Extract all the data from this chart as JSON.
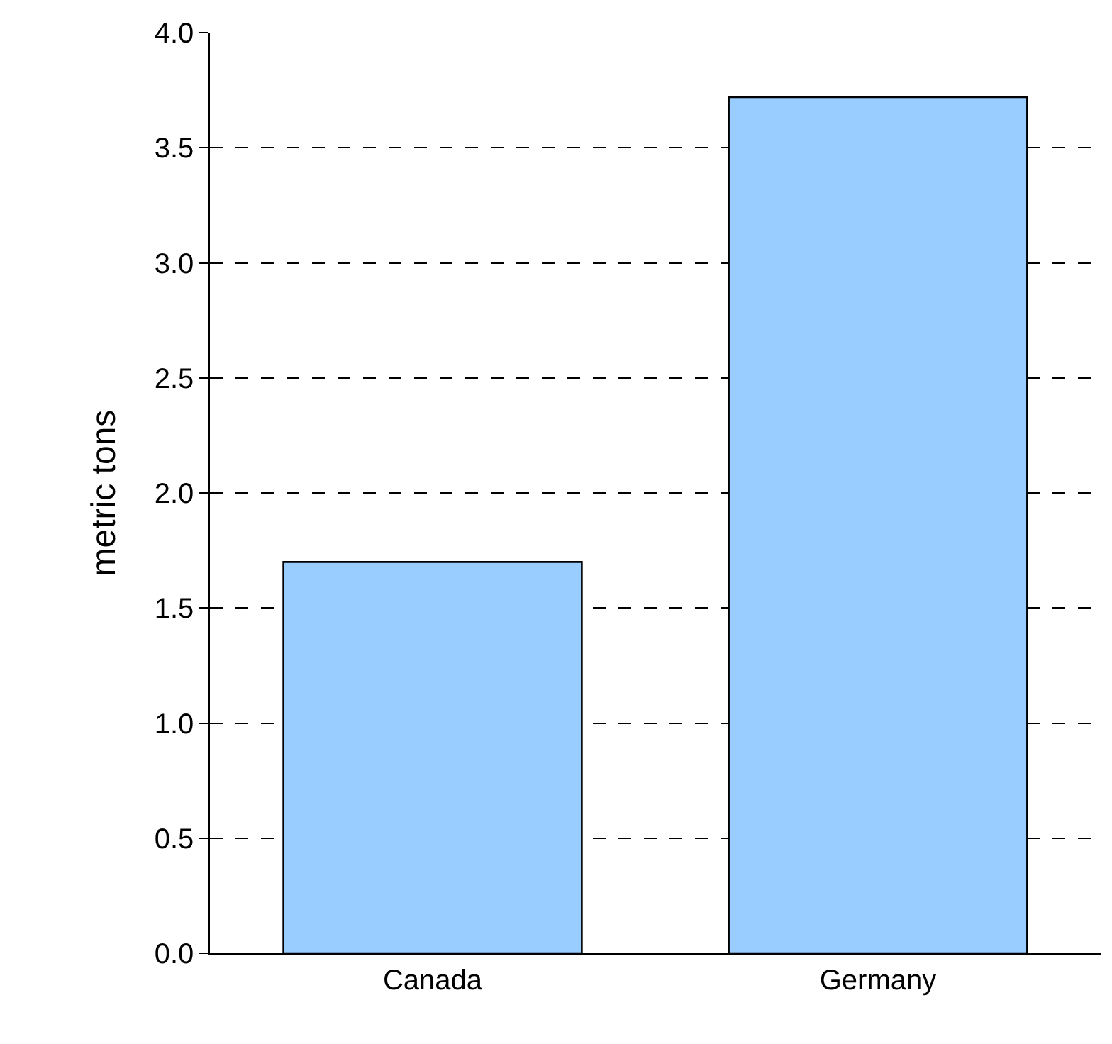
{
  "chart_data": {
    "type": "bar",
    "ylabel": "metric tons",
    "categories": [
      "Canada",
      "Germany"
    ],
    "values": [
      1.7,
      3.72
    ],
    "color": "#99ccff",
    "ylim": [
      0,
      4
    ],
    "yticks": [
      {
        "value": 0,
        "label": "0.0"
      },
      {
        "value": 0.5,
        "label": "0.5"
      },
      {
        "value": 1,
        "label": "1.0"
      },
      {
        "value": 1.5,
        "label": "1.5"
      },
      {
        "value": 2,
        "label": "2.0"
      },
      {
        "value": 2.5,
        "label": "2.5"
      },
      {
        "value": 3,
        "label": "3.0"
      },
      {
        "value": 3.5,
        "label": "3.5"
      },
      {
        "value": 4,
        "label": "4.0"
      }
    ],
    "grid": "y"
  }
}
